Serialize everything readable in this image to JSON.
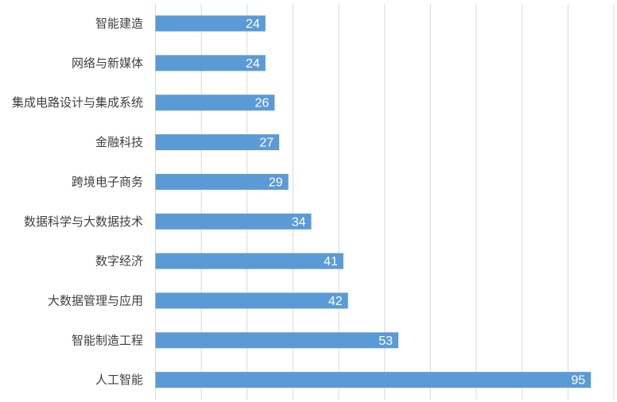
{
  "chart_data": {
    "type": "bar",
    "orientation": "horizontal",
    "categories": [
      "智能建造",
      "网络与新媒体",
      "集成电路设计与集成系统",
      "金融科技",
      "跨境电子商务",
      "数据科学与大数据技术",
      "数字经济",
      "大数据管理与应用",
      "智能制造工程",
      "人工智能"
    ],
    "values": [
      24,
      24,
      26,
      27,
      29,
      34,
      41,
      42,
      53,
      95
    ],
    "title": "",
    "xlabel": "",
    "ylabel": "",
    "xlim": [
      0,
      100
    ],
    "grid": true,
    "legend": "none",
    "bar_color": "#5b9bd5",
    "gridline_color": "#d9d9d9",
    "data_labels": true
  }
}
